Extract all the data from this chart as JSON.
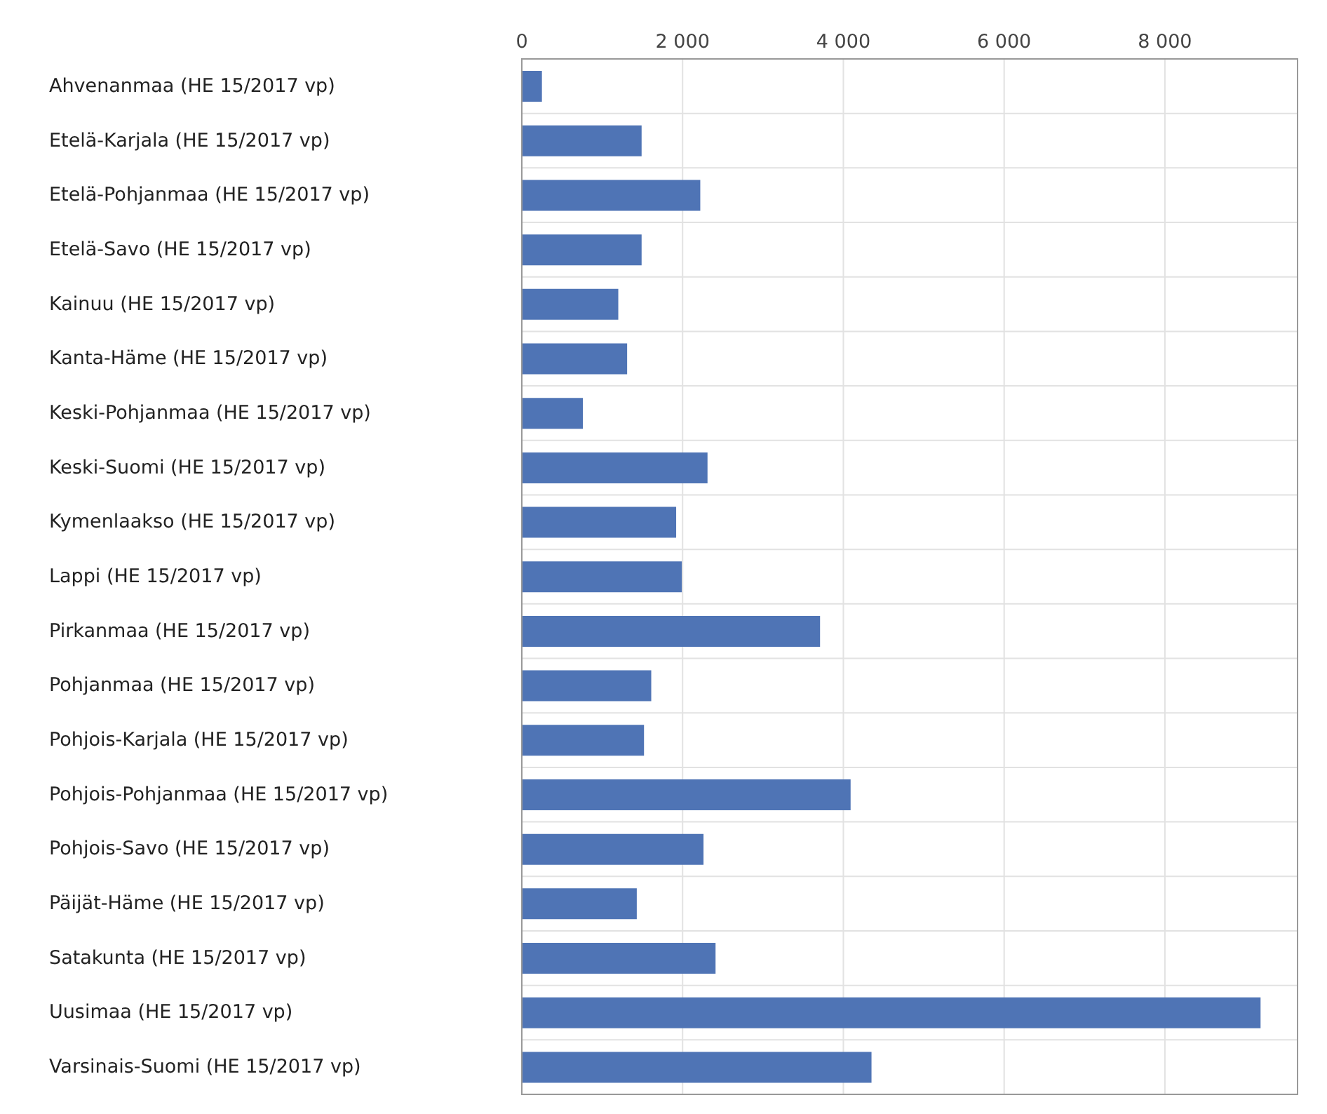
{
  "chart_data": {
    "type": "bar",
    "orientation": "horizontal",
    "categories": [
      "Ahvenanmaa  (HE 15/2017 vp)",
      "Etelä-Karjala  (HE 15/2017 vp)",
      "Etelä-Pohjanmaa  (HE 15/2017 vp)",
      "Etelä-Savo  (HE 15/2017 vp)",
      "Kainuu  (HE 15/2017 vp)",
      "Kanta-Häme  (HE 15/2017 vp)",
      "Keski-Pohjanmaa  (HE 15/2017 vp)",
      "Keski-Suomi  (HE 15/2017 vp)",
      "Kymenlaakso  (HE 15/2017 vp)",
      "Lappi  (HE 15/2017 vp)",
      "Pirkanmaa  (HE 15/2017 vp)",
      "Pohjanmaa  (HE 15/2017 vp)",
      "Pohjois-Karjala  (HE 15/2017 vp)",
      "Pohjois-Pohjanmaa  (HE 15/2017 vp)",
      "Pohjois-Savo  (HE 15/2017 vp)",
      "Päijät-Häme  (HE 15/2017 vp)",
      "Satakunta  (HE 15/2017 vp)",
      "Uusimaa  (HE 15/2017 vp)",
      "Varsinais-Suomi  (HE 15/2017 vp)"
    ],
    "values": [
      250,
      1490,
      2220,
      1490,
      1200,
      1310,
      760,
      2310,
      1920,
      1990,
      3710,
      1610,
      1520,
      4090,
      2260,
      1430,
      2410,
      9190,
      4350
    ],
    "color": "#4f74b5",
    "xlim": [
      0,
      9650
    ],
    "xticks": [
      0,
      {
        "value": 2000,
        "label": "2 000"
      },
      {
        "value": 4000,
        "label": "4 000"
      },
      {
        "value": 6000,
        "label": "6 000"
      },
      {
        "value": 8000,
        "label": "8 000"
      }
    ],
    "grid": true
  }
}
